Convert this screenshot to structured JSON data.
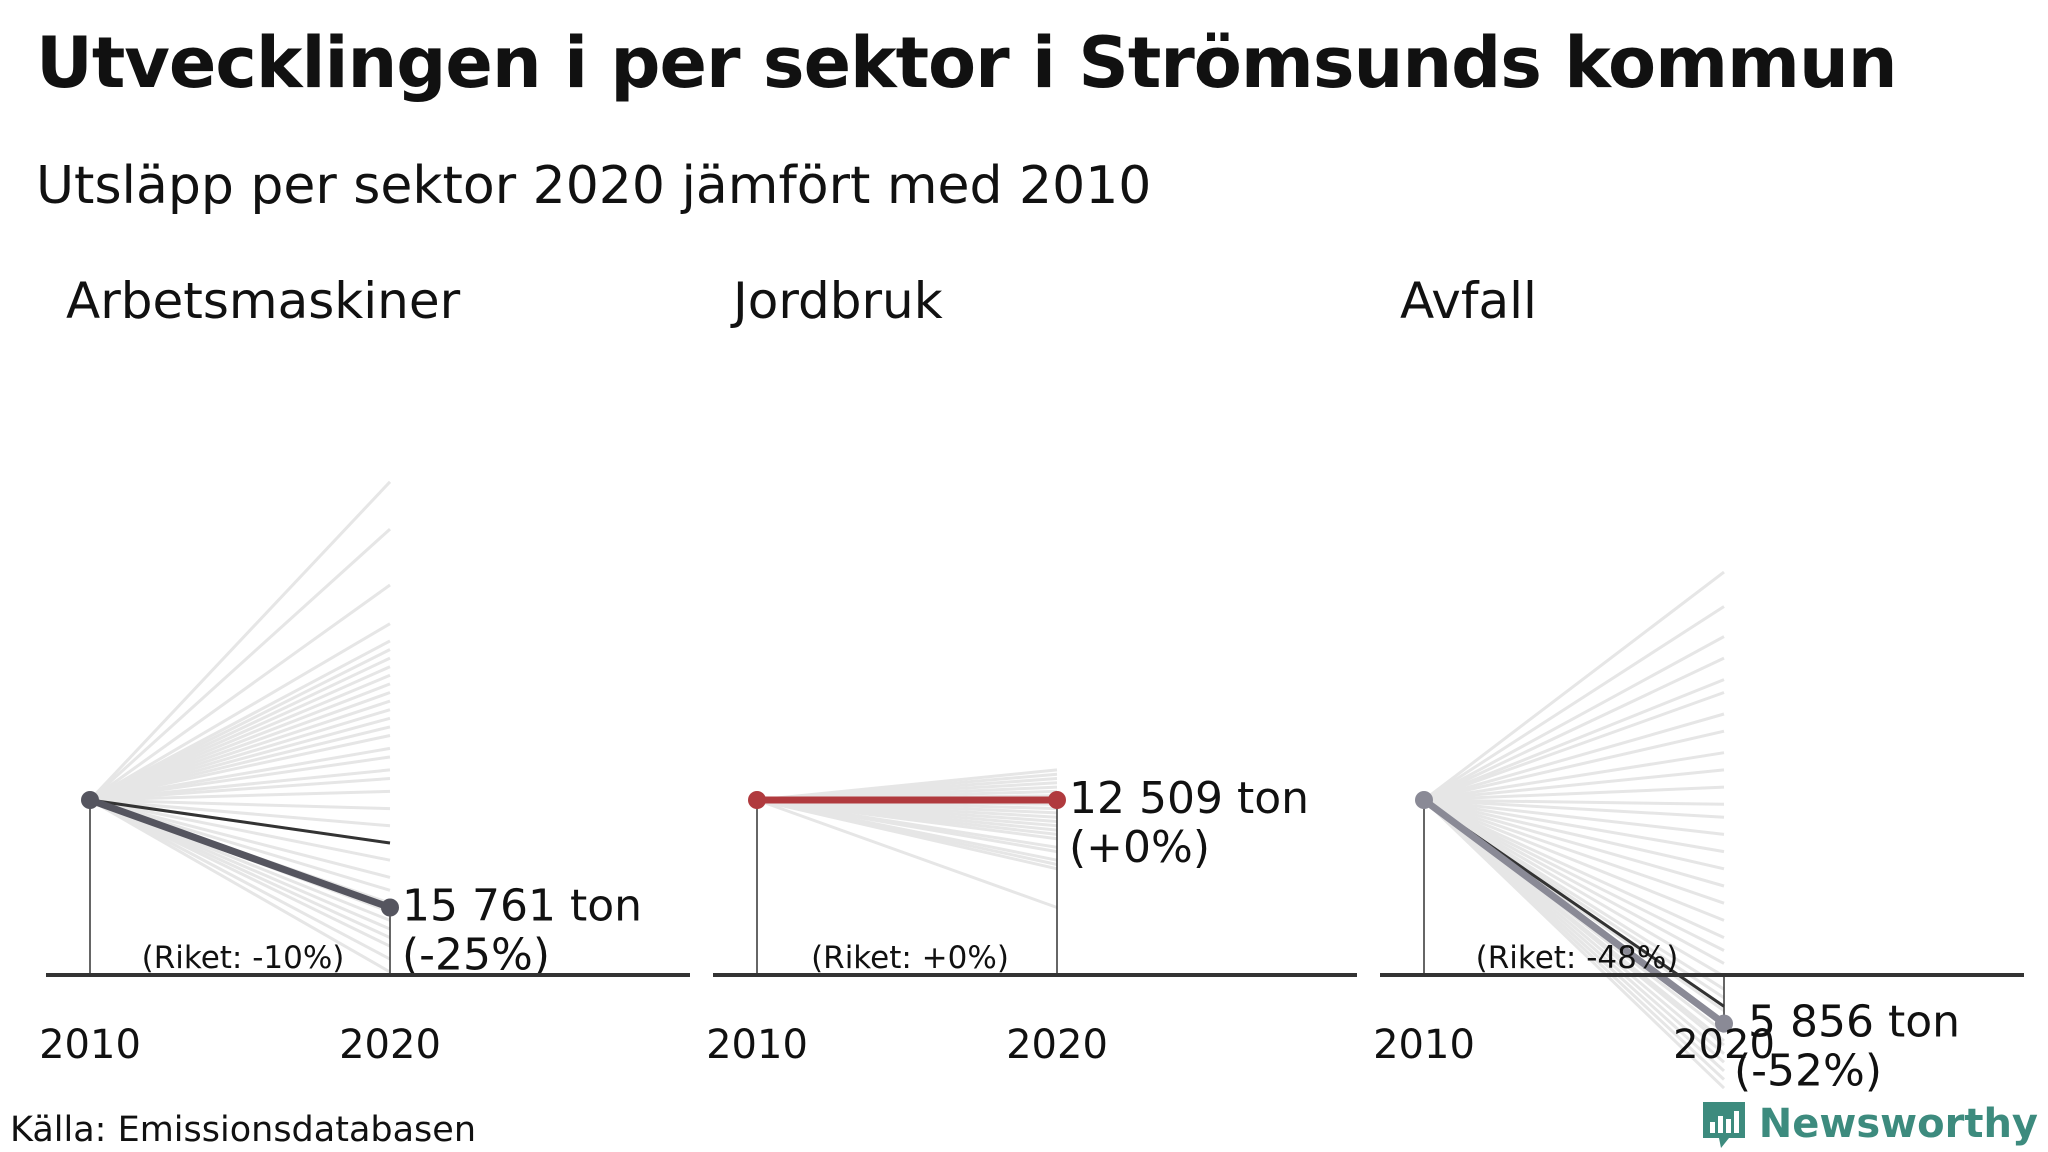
{
  "title": "Utvecklingen i per sektor i Strömsunds kommun",
  "subtitle": "Utsläpp per sektor 2020 jämfört med 2010",
  "source": "Källa: Emissionsdatabasen",
  "brand": "Newsworthy",
  "colors": {
    "background_lines": "#e6e6e6",
    "axis": "#333333",
    "riket_line": "#333333",
    "brand": "#3d8b7e"
  },
  "chart_data": [
    {
      "type": "line",
      "title": "Arbetsmaskiner",
      "x": [
        2010,
        2020
      ],
      "highlight": {
        "y": [
          100,
          75
        ],
        "color": "#55555f",
        "value_label": "15 761 ton",
        "change_label": "(-25%)"
      },
      "riket": {
        "y": [
          100,
          90
        ],
        "label": "(Riket: -10%)"
      },
      "background_series": [
        [
          100,
          174
        ],
        [
          100,
          163
        ],
        [
          100,
          150
        ],
        [
          100,
          141
        ],
        [
          100,
          137
        ],
        [
          100,
          135
        ],
        [
          100,
          133
        ],
        [
          100,
          131
        ],
        [
          100,
          129
        ],
        [
          100,
          127
        ],
        [
          100,
          125
        ],
        [
          100,
          123
        ],
        [
          100,
          121
        ],
        [
          100,
          119
        ],
        [
          100,
          117
        ],
        [
          100,
          115
        ],
        [
          100,
          112
        ],
        [
          100,
          110
        ],
        [
          100,
          107
        ],
        [
          100,
          105
        ],
        [
          100,
          102
        ],
        [
          100,
          98
        ],
        [
          100,
          94
        ],
        [
          100,
          90
        ],
        [
          100,
          86
        ],
        [
          100,
          82
        ],
        [
          100,
          79
        ],
        [
          100,
          76
        ],
        [
          100,
          74
        ],
        [
          100,
          72
        ],
        [
          100,
          70
        ],
        [
          100,
          68
        ],
        [
          100,
          66
        ],
        [
          100,
          63
        ],
        [
          100,
          60
        ]
      ],
      "xlim": [
        2010,
        2020
      ],
      "ylim": [
        0,
        200
      ]
    },
    {
      "type": "line",
      "title": "Jordbruk",
      "x": [
        2010,
        2020
      ],
      "highlight": {
        "y": [
          100,
          100
        ],
        "color": "#b03a3e",
        "value_label": "12 509 ton",
        "change_label": "(+0%)"
      },
      "riket": {
        "y": [
          100,
          100
        ],
        "label": "(Riket: +0%)"
      },
      "background_series": [
        [
          100,
          107
        ],
        [
          100,
          106
        ],
        [
          100,
          105
        ],
        [
          100,
          104
        ],
        [
          100,
          103
        ],
        [
          100,
          102
        ],
        [
          100,
          101
        ],
        [
          100,
          99
        ],
        [
          100,
          98
        ],
        [
          100,
          97
        ],
        [
          100,
          96
        ],
        [
          100,
          95
        ],
        [
          100,
          94
        ],
        [
          100,
          93
        ],
        [
          100,
          92
        ],
        [
          100,
          91
        ],
        [
          100,
          89
        ],
        [
          100,
          88
        ],
        [
          100,
          86
        ],
        [
          100,
          85
        ],
        [
          100,
          84
        ],
        [
          100,
          75
        ]
      ],
      "xlim": [
        2010,
        2020
      ],
      "ylim": [
        0,
        200
      ]
    },
    {
      "type": "line",
      "title": "Avfall",
      "x": [
        2010,
        2020
      ],
      "highlight": {
        "y": [
          100,
          48
        ],
        "color": "#8a8a96",
        "value_label": "5 856 ton",
        "change_label": "(-52%)"
      },
      "riket": {
        "y": [
          100,
          52
        ],
        "label": "(Riket: -48%)"
      },
      "background_series": [
        [
          100,
          153
        ],
        [
          100,
          145
        ],
        [
          100,
          138
        ],
        [
          100,
          133
        ],
        [
          100,
          128
        ],
        [
          100,
          125
        ],
        [
          100,
          120
        ],
        [
          100,
          116
        ],
        [
          100,
          111
        ],
        [
          100,
          107
        ],
        [
          100,
          103
        ],
        [
          100,
          99
        ],
        [
          100,
          96
        ],
        [
          100,
          92
        ],
        [
          100,
          88
        ],
        [
          100,
          84
        ],
        [
          100,
          80
        ],
        [
          100,
          76
        ],
        [
          100,
          72
        ],
        [
          100,
          68
        ],
        [
          100,
          65
        ],
        [
          100,
          62
        ],
        [
          100,
          59
        ],
        [
          100,
          56
        ],
        [
          100,
          54
        ],
        [
          100,
          51
        ],
        [
          100,
          48
        ],
        [
          100,
          46
        ],
        [
          100,
          44
        ],
        [
          100,
          43
        ],
        [
          100,
          41
        ],
        [
          100,
          39
        ],
        [
          100,
          37
        ],
        [
          100,
          35
        ],
        [
          100,
          33
        ]
      ],
      "xlim": [
        2010,
        2020
      ],
      "ylim": [
        0,
        200
      ]
    }
  ]
}
